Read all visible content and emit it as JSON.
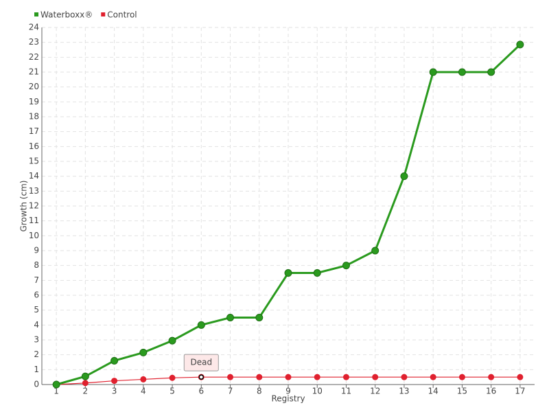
{
  "chart_data": {
    "type": "line",
    "xlabel": "Registry",
    "ylabel": "Growth (cm)",
    "x": [
      1,
      2,
      3,
      4,
      5,
      6,
      7,
      8,
      9,
      10,
      11,
      12,
      13,
      14,
      15,
      16,
      17
    ],
    "series": [
      {
        "name": "Waterboxx®",
        "color": "#2a9a1e",
        "values": [
          0,
          0.55,
          1.6,
          2.15,
          2.95,
          4,
          4.5,
          4.5,
          7.5,
          7.5,
          8,
          9,
          14,
          21,
          21,
          21,
          22.85
        ]
      },
      {
        "name": "Control",
        "color": "#e0202e",
        "values": [
          0,
          0.1,
          0.25,
          0.35,
          0.45,
          0.5,
          0.5,
          0.5,
          0.5,
          0.5,
          0.5,
          0.5,
          0.5,
          0.5,
          0.5,
          0.5,
          0.5
        ]
      }
    ],
    "annotations": [
      {
        "label": "Dead",
        "x": 6,
        "y": 0.5
      }
    ],
    "xlim": [
      0.5,
      17.5
    ],
    "xticks": [
      1,
      2,
      3,
      4,
      5,
      6,
      7,
      8,
      9,
      10,
      11,
      12,
      13,
      14,
      15,
      16,
      17
    ],
    "ylim": [
      0,
      24
    ],
    "yticks": [
      0,
      1,
      2,
      3,
      4,
      5,
      6,
      7,
      8,
      9,
      10,
      11,
      12,
      13,
      14,
      15,
      16,
      17,
      18,
      19,
      20,
      21,
      22,
      23,
      24
    ],
    "grid": true,
    "legend": "top-left"
  }
}
